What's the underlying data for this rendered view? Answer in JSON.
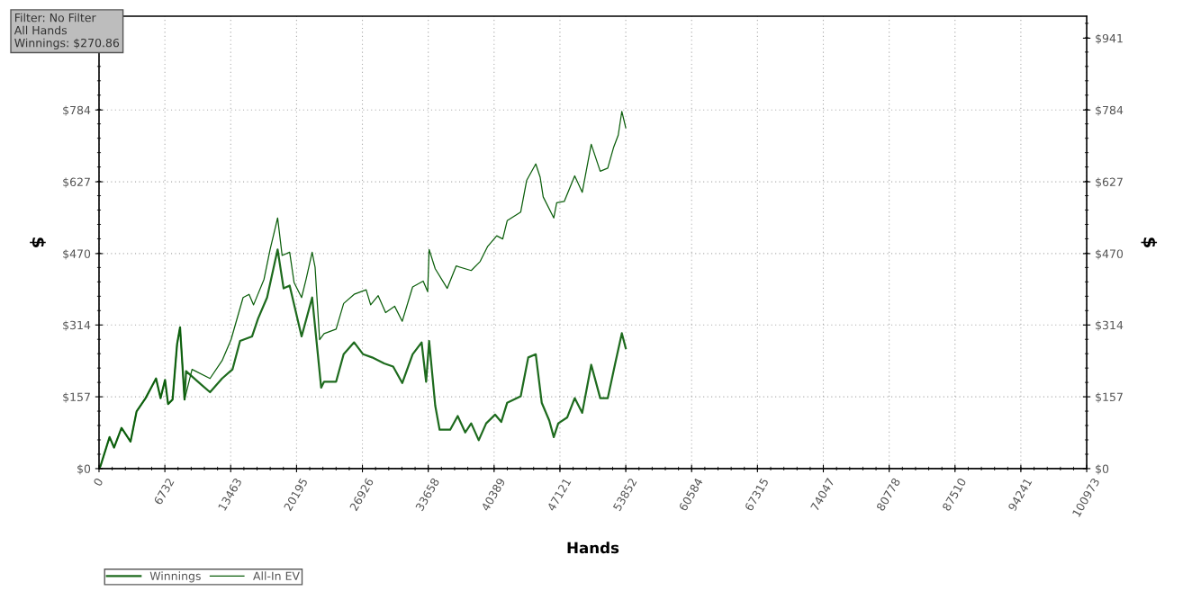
{
  "chart_data": {
    "type": "line",
    "xlabel": "Hands",
    "ylabel": "$",
    "y2label": "$",
    "annotations": [
      "Filter: No Filter",
      "All Hands",
      "Winnings: $270.86"
    ],
    "series": [
      {
        "name": "Winnings",
        "color": "#1e6b1e",
        "x": [
          0,
          156,
          1077,
          1537,
          2300,
          3220,
          3840,
          4760,
          5830,
          6290,
          6750,
          7060,
          7520,
          7980,
          8285,
          8745,
          8900,
          10430,
          11350,
          12580,
          13650,
          14420,
          15650,
          16260,
          17180,
          18260,
          18870,
          19490,
          20710,
          21790,
          22250,
          22710,
          23010,
          24240,
          25010,
          26080,
          27000,
          27920,
          29150,
          30070,
          31000,
          32060,
          32980,
          33440,
          33750,
          34370,
          34820,
          35900,
          36670,
          37440,
          38050,
          38820,
          39580,
          40500,
          41120,
          41730,
          43110,
          43880,
          44650,
          45260,
          46030,
          46490,
          46950,
          47870,
          48630,
          49400,
          50320,
          51240,
          52010,
          52770,
          53450,
          53850
        ],
        "values": [
          0,
          6,
          69,
          46,
          89,
          59,
          125,
          154,
          197,
          154,
          194,
          141,
          151,
          272,
          309,
          151,
          213,
          184,
          167,
          197,
          217,
          279,
          289,
          328,
          374,
          479,
          394,
          400,
          289,
          374,
          276,
          177,
          190,
          190,
          250,
          276,
          250,
          243,
          230,
          223,
          187,
          250,
          276,
          190,
          279,
          138,
          85,
          85,
          115,
          79,
          99,
          62,
          99,
          118,
          102,
          144,
          158,
          243,
          250,
          144,
          105,
          69,
          99,
          112,
          154,
          122,
          227,
          154,
          154,
          230,
          296,
          263
        ]
      },
      {
        "name": "All-In EV",
        "color": "#0b5e0b",
        "x": [
          0,
          156,
          1077,
          1537,
          2300,
          3220,
          3840,
          4760,
          5830,
          6290,
          6750,
          7060,
          7520,
          7980,
          8285,
          8745,
          9510,
          11350,
          12580,
          13500,
          14730,
          15340,
          15800,
          16870,
          17490,
          18260,
          18720,
          19490,
          19940,
          20710,
          21170,
          21790,
          22090,
          22550,
          23010,
          24240,
          25010,
          26080,
          27310,
          27770,
          28540,
          29300,
          30220,
          31000,
          32060,
          33140,
          33600,
          33750,
          34370,
          35600,
          36510,
          38050,
          38970,
          39740,
          40660,
          41270,
          41730,
          43110,
          43720,
          44650,
          45100,
          45410,
          46490,
          46790,
          47560,
          48630,
          49400,
          50320,
          51240,
          52010,
          52620,
          53080,
          53450,
          53850
        ],
        "values": [
          0,
          6,
          69,
          46,
          89,
          59,
          125,
          154,
          197,
          154,
          194,
          141,
          151,
          272,
          309,
          151,
          217,
          197,
          236,
          282,
          374,
          381,
          358,
          414,
          479,
          548,
          466,
          473,
          407,
          374,
          414,
          473,
          440,
          282,
          295,
          305,
          361,
          381,
          391,
          358,
          378,
          341,
          355,
          322,
          397,
          410,
          387,
          479,
          437,
          394,
          443,
          433,
          453,
          486,
          509,
          502,
          542,
          561,
          630,
          666,
          637,
          594,
          548,
          581,
          584,
          640,
          604,
          709,
          650,
          657,
          703,
          729,
          781,
          745
        ]
      }
    ],
    "xlim": [
      0,
      100973
    ],
    "xticks": [
      0,
      6732,
      13463,
      20195,
      26926,
      33658,
      40389,
      47121,
      53852,
      60584,
      67315,
      74047,
      80778,
      87510,
      94241,
      100973
    ],
    "ylim": [
      0,
      989
    ],
    "yticks": [
      {
        "value": 0,
        "label": "$0"
      },
      {
        "value": 157,
        "label": "$157"
      },
      {
        "value": 314,
        "label": "$314"
      },
      {
        "value": 470,
        "label": "$470"
      },
      {
        "value": 627,
        "label": "$627"
      },
      {
        "value": 784,
        "label": "$784"
      }
    ],
    "y2lim": [
      0,
      989
    ],
    "y2ticks": [
      {
        "value": 0,
        "label": "$0"
      },
      {
        "value": 157,
        "label": "$157"
      },
      {
        "value": 314,
        "label": "$314"
      },
      {
        "value": 470,
        "label": "$470"
      },
      {
        "value": 627,
        "label": "$627"
      },
      {
        "value": 784,
        "label": "$784"
      },
      {
        "value": 941,
        "label": "$941"
      }
    ],
    "grid": true,
    "legend": "bottom left",
    "marker": "none",
    "line_style": "solid"
  }
}
